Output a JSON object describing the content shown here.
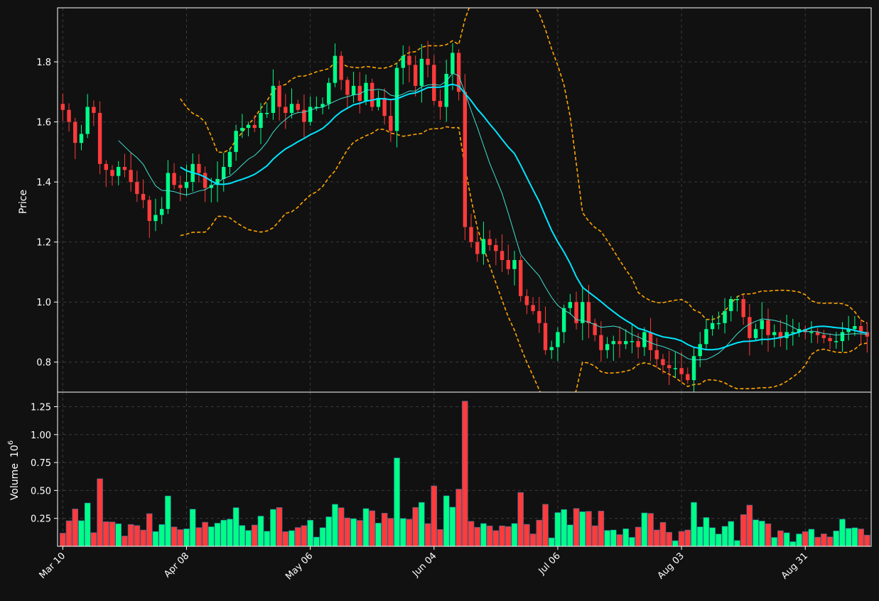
{
  "theme": {
    "background": "#111111",
    "grid": "#3a3a3a",
    "axis": "#ffffff",
    "up": "#00ff88",
    "down": "#ff3b3b",
    "ma_short": "#40e0d0",
    "ma_long": "#00e5ff",
    "bands": "#ffa500"
  },
  "chart_data": {
    "type": "candlestick",
    "price_ylabel": "Price",
    "volume_ylabel": "Volume",
    "volume_multiplier": "10",
    "volume_exponent": "6",
    "price_ylim": [
      0.7,
      1.98
    ],
    "volume_ylim": [
      0,
      1.38
    ],
    "grid": true,
    "price_ticks": [
      "0.8",
      "1.0",
      "1.2",
      "1.4",
      "1.6",
      "1.8"
    ],
    "volume_ticks": [
      "0.25",
      "0.50",
      "0.75",
      "1.00",
      "1.25"
    ],
    "x_tick_labels": [
      "Mar 10",
      "Apr 08",
      "May 06",
      "Jun 04",
      "Jul 06",
      "Aug 03",
      "Aug 31"
    ],
    "x_tick_index": [
      0,
      20,
      40,
      60,
      80,
      100,
      120
    ],
    "open": [
      1.66,
      1.64,
      1.6,
      1.53,
      1.56,
      1.65,
      1.63,
      1.46,
      1.44,
      1.42,
      1.45,
      1.44,
      1.4,
      1.36,
      1.34,
      1.27,
      1.29,
      1.31,
      1.43,
      1.39,
      1.38,
      1.4,
      1.46,
      1.43,
      1.38,
      1.39,
      1.41,
      1.45,
      1.5,
      1.57,
      1.58,
      1.59,
      1.58,
      1.63,
      1.63,
      1.72,
      1.65,
      1.63,
      1.66,
      1.64,
      1.6,
      1.65,
      1.65,
      1.66,
      1.73,
      1.82,
      1.74,
      1.69,
      1.72,
      1.67,
      1.73,
      1.65,
      1.68,
      1.62,
      1.57,
      1.78,
      1.82,
      1.79,
      1.72,
      1.81,
      1.79,
      1.67,
      1.65,
      1.76,
      1.83,
      1.7,
      1.25,
      1.2,
      1.16,
      1.21,
      1.19,
      1.17,
      1.14,
      1.11,
      1.14,
      1.02,
      0.99,
      0.97,
      0.93,
      0.84,
      0.85,
      0.9,
      0.98,
      1.0,
      0.93,
      1.0,
      0.93,
      0.89,
      0.84,
      0.86,
      0.87,
      0.86,
      0.87,
      0.87,
      0.85,
      0.9,
      0.84,
      0.81,
      0.79,
      0.78,
      0.78,
      0.76,
      0.74,
      0.82,
      0.86,
      0.91,
      0.93,
      0.93,
      0.97,
      1.01,
      1.01,
      0.95,
      0.88,
      0.91,
      0.94,
      0.89,
      0.9,
      0.88,
      0.9,
      0.9,
      0.91,
      0.9,
      0.9,
      0.89,
      0.88,
      0.87,
      0.87,
      0.9,
      0.91,
      0.92,
      0.9
    ]
  }
}
